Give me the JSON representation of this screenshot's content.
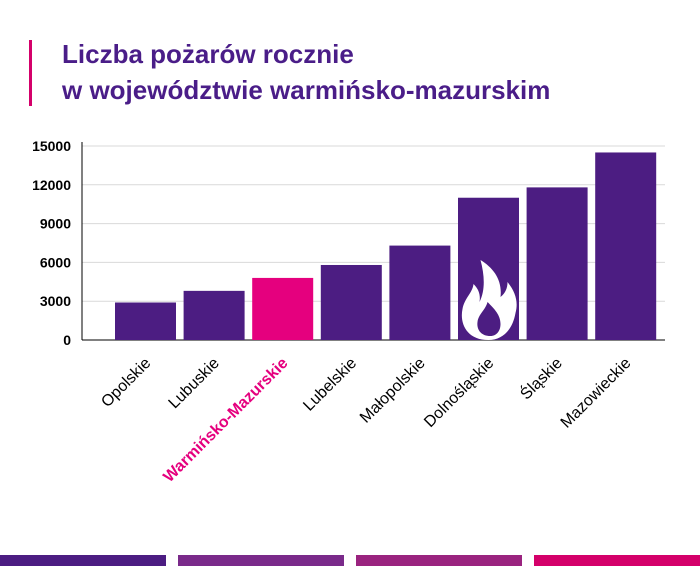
{
  "title": {
    "line1": "Liczba pożarów rocznie",
    "line2": "w województwie warmińsko-mazurskim"
  },
  "colors": {
    "bar": "#4c1d82",
    "highlight": "#e5007e",
    "title": "#4a1d88",
    "accent_bar": "#d4006a",
    "grid": "#d9d9d9",
    "axis_text": "#000000",
    "footer": [
      "#4c1d82",
      "#7a2a8a",
      "#9a237f",
      "#d4006a"
    ]
  },
  "icon": "flame-icon",
  "chart_data": {
    "type": "bar",
    "categories": [
      "Opolskie",
      "Lubuskie",
      "Warmińsko-Mazurskie",
      "Lubelskie",
      "Małopolskie",
      "Dolnośląskie",
      "Śląskie",
      "Mazowieckie"
    ],
    "values": [
      2900,
      3800,
      4800,
      5800,
      7300,
      11000,
      11800,
      14500
    ],
    "highlight_index": 2,
    "yticks": [
      0,
      3000,
      6000,
      9000,
      12000,
      15000
    ],
    "ylim": [
      0,
      15000
    ],
    "grid": true,
    "xlabel": "",
    "ylabel": ""
  }
}
